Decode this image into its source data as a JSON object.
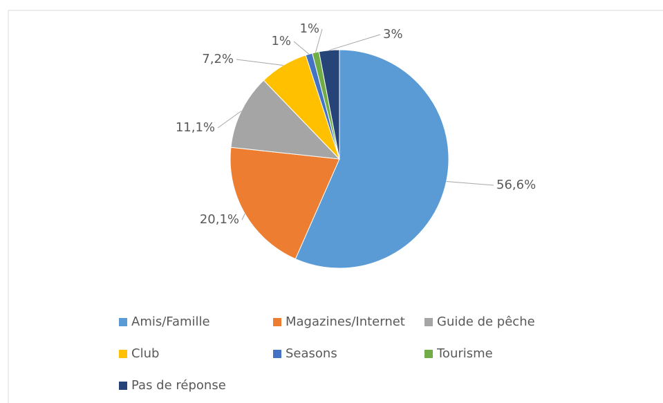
{
  "chart_data": {
    "type": "pie",
    "categories": [
      "Amis/Famille",
      "Magazines/Internet",
      "Guide de pêche",
      "Club",
      "Seasons",
      "Tourisme",
      "Pas de réponse"
    ],
    "values": [
      56.6,
      20.1,
      11.1,
      7.2,
      1,
      1,
      3
    ],
    "value_labels": [
      "56,6%",
      "20,1%",
      "11,1%",
      "7,2%",
      "1%",
      "1%",
      "3%"
    ],
    "colors": [
      "#5b9bd5",
      "#ed7d31",
      "#a5a5a5",
      "#ffc000",
      "#4472c4",
      "#70ad47",
      "#264478"
    ],
    "legend": "bottom"
  }
}
